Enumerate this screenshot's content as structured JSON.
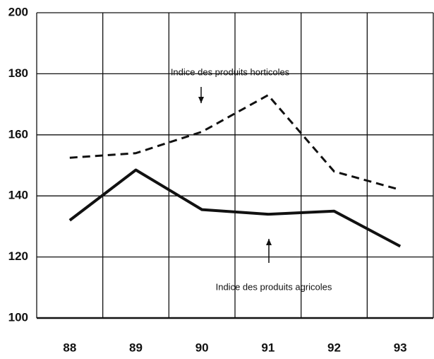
{
  "chart_data": {
    "type": "line",
    "categories": [
      "88",
      "89",
      "90",
      "91",
      "92",
      "93"
    ],
    "series": [
      {
        "name": "Indice des produits horticoles",
        "color": "#111111",
        "style": "dashed",
        "values": [
          152.5,
          154,
          161,
          173,
          148,
          142
        ]
      },
      {
        "name": "Indice des produits agricoles",
        "color": "#111111",
        "style": "solid",
        "values": [
          132,
          148.5,
          135.5,
          134,
          135,
          123.5
        ]
      }
    ],
    "ylim": [
      100,
      200
    ],
    "yticks": [
      100,
      120,
      140,
      160,
      180,
      200
    ],
    "grid": true
  }
}
